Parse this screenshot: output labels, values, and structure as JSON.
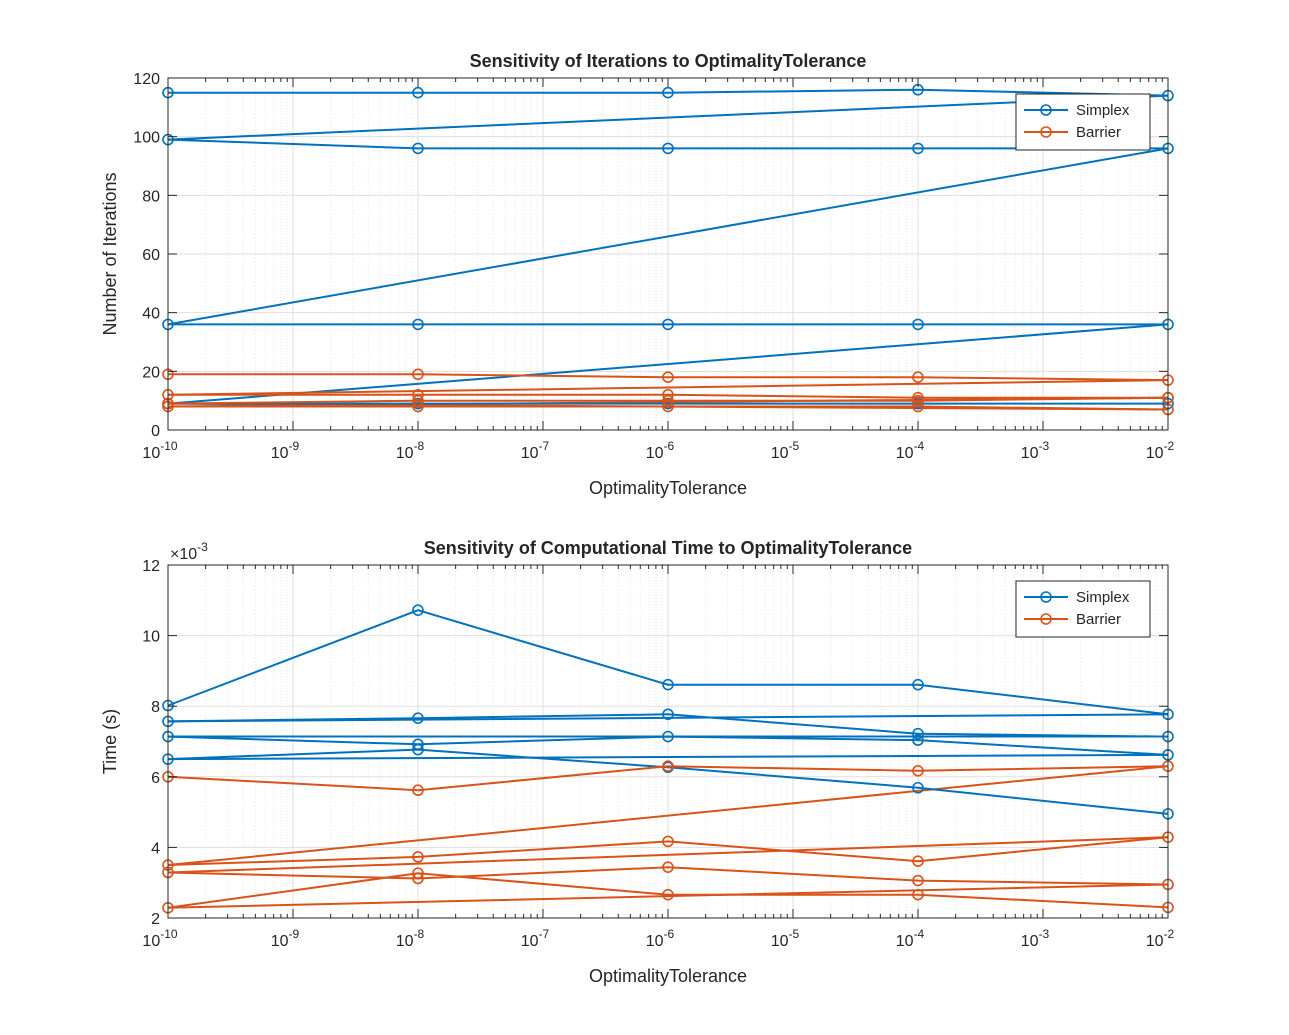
{
  "colors": {
    "simplex": "#0072BD",
    "barrier": "#D95319",
    "grid": "#dfdfdf",
    "axis": "#262626"
  },
  "chart_data": [
    {
      "type": "line",
      "title": "Sensitivity of Iterations to OptimalityTolerance",
      "xlabel": "OptimalityTolerance",
      "ylabel": "Number of Iterations",
      "xscale": "log",
      "xlim": [
        1e-10,
        0.01
      ],
      "ylim": [
        0,
        120
      ],
      "grid": true,
      "legend_position": "top-right",
      "x": [
        1e-10,
        1e-08,
        1e-06,
        0.0001,
        0.01
      ],
      "xtick_exponents": [
        "-10",
        "-9",
        "-8",
        "-7",
        "-6",
        "-5",
        "-4",
        "-3",
        "-2"
      ],
      "ytick_labels": [
        "0",
        "20",
        "40",
        "60",
        "80",
        "100",
        "120"
      ],
      "legend": [
        "Simplex",
        "Barrier"
      ],
      "series": [
        {
          "name": "Simplex",
          "group": "simplex",
          "values": [
            115,
            115,
            115,
            116,
            114
          ]
        },
        {
          "name": "Simplex",
          "group": "simplex",
          "values": [
            99,
            96,
            96,
            96,
            96
          ]
        },
        {
          "name": "Simplex",
          "group": "simplex",
          "values": [
            36,
            36,
            36,
            36,
            36
          ]
        },
        {
          "name": "Simplex",
          "group": "simplex",
          "values": [
            9,
            9,
            9,
            9,
            9
          ]
        },
        {
          "name": "Barrier",
          "group": "barrier",
          "values": [
            19,
            19,
            18,
            18,
            17
          ]
        },
        {
          "name": "Barrier",
          "group": "barrier",
          "values": [
            12,
            12,
            12,
            11,
            11
          ]
        },
        {
          "name": "Barrier",
          "group": "barrier",
          "values": [
            8,
            8,
            8,
            8,
            7
          ]
        },
        {
          "name": "Barrier",
          "group": "barrier",
          "values": [
            9,
            10,
            10,
            10,
            11
          ]
        }
      ],
      "connectors": [
        {
          "group": "simplex",
          "from": [
            0.01,
            114
          ],
          "to": [
            1e-10,
            99
          ]
        },
        {
          "group": "simplex",
          "from": [
            0.01,
            96
          ],
          "to": [
            1e-10,
            36
          ]
        },
        {
          "group": "simplex",
          "from": [
            0.01,
            36
          ],
          "to": [
            1e-10,
            9
          ]
        },
        {
          "group": "barrier",
          "from": [
            0.01,
            17
          ],
          "to": [
            1e-10,
            12
          ]
        },
        {
          "group": "barrier",
          "from": [
            0.01,
            11
          ],
          "to": [
            1e-10,
            8
          ]
        },
        {
          "group": "barrier",
          "from": [
            0.01,
            7
          ],
          "to": [
            1e-10,
            9
          ]
        }
      ]
    },
    {
      "type": "line",
      "title": "Sensitivity of Computational Time to OptimalityTolerance",
      "xlabel": "OptimalityTolerance",
      "ylabel": "Time (s)",
      "xscale": "log",
      "xlim": [
        1e-10,
        0.01
      ],
      "ylim": [
        0.002,
        0.012
      ],
      "exponent_label_exp": "-3",
      "grid": true,
      "legend_position": "top-right",
      "x": [
        1e-10,
        1e-08,
        1e-06,
        0.0001,
        0.01
      ],
      "xtick_exponents": [
        "-10",
        "-9",
        "-8",
        "-7",
        "-6",
        "-5",
        "-4",
        "-3",
        "-2"
      ],
      "ytick_labels": [
        "2",
        "4",
        "6",
        "8",
        "10",
        "12"
      ],
      "legend": [
        "Simplex",
        "Barrier"
      ],
      "series": [
        {
          "name": "Simplex",
          "group": "simplex",
          "values": [
            0.00802,
            0.01072,
            0.00861,
            0.00861,
            0.00777
          ]
        },
        {
          "name": "Simplex",
          "group": "simplex",
          "values": [
            0.00757,
            0.00766,
            0.00777,
            0.00722,
            0.00714
          ]
        },
        {
          "name": "Simplex",
          "group": "simplex",
          "values": [
            0.00714,
            0.00692,
            0.00714,
            0.00704,
            0.00662
          ]
        },
        {
          "name": "Simplex",
          "group": "simplex",
          "values": [
            0.0065,
            0.00677,
            0.00627,
            0.00569,
            0.00495
          ]
        },
        {
          "name": "Barrier",
          "group": "barrier",
          "values": [
            0.006,
            0.00562,
            0.0063,
            0.00617,
            0.0063
          ]
        },
        {
          "name": "Barrier",
          "group": "barrier",
          "values": [
            0.0035,
            0.00373,
            0.00417,
            0.00361,
            0.00429
          ]
        },
        {
          "name": "Barrier",
          "group": "barrier",
          "values": [
            0.00329,
            0.00312,
            0.00344,
            0.00306,
            0.00295
          ]
        },
        {
          "name": "Barrier",
          "group": "barrier",
          "values": [
            0.00229,
            0.00327,
            0.00266,
            0.00266,
            0.0023
          ]
        }
      ],
      "connectors": [
        {
          "group": "simplex",
          "from": [
            0.01,
            0.00777
          ],
          "to": [
            1e-10,
            0.00757
          ]
        },
        {
          "group": "simplex",
          "from": [
            0.01,
            0.00714
          ],
          "to": [
            1e-10,
            0.00714
          ]
        },
        {
          "group": "simplex",
          "from": [
            0.01,
            0.00662
          ],
          "to": [
            1e-10,
            0.0065
          ]
        },
        {
          "group": "barrier",
          "from": [
            0.01,
            0.0063
          ],
          "to": [
            1e-10,
            0.0035
          ]
        },
        {
          "group": "barrier",
          "from": [
            0.01,
            0.00429
          ],
          "to": [
            1e-10,
            0.00329
          ]
        },
        {
          "group": "barrier",
          "from": [
            0.01,
            0.00295
          ],
          "to": [
            1e-10,
            0.00229
          ]
        }
      ]
    }
  ]
}
